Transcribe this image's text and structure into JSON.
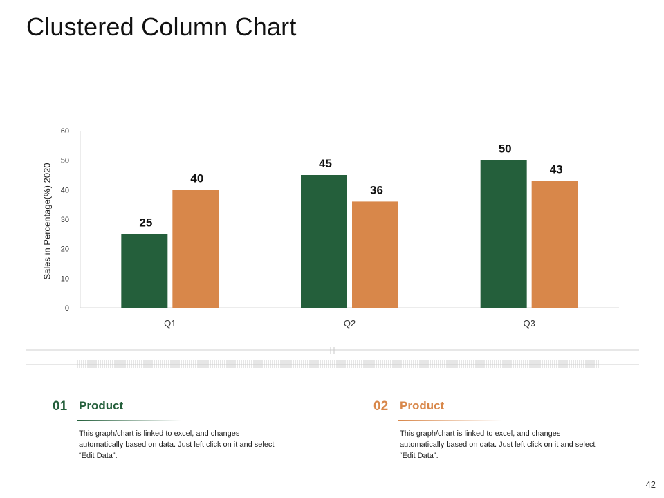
{
  "page": {
    "title": "Clustered Column Chart",
    "page_number": "42"
  },
  "chart_data": {
    "type": "bar",
    "title": "",
    "xlabel": "",
    "ylabel": "Sales in Percentage(%) 2020",
    "categories": [
      "Q1",
      "Q2",
      "Q3"
    ],
    "series": [
      {
        "name": "Product 01",
        "color": "#245F3B",
        "values": [
          25,
          45,
          50
        ]
      },
      {
        "name": "Product 02",
        "color": "#D8874A",
        "values": [
          40,
          36,
          43
        ]
      }
    ],
    "ylim": [
      0,
      60
    ],
    "yticks": [
      0,
      10,
      20,
      30,
      40,
      50,
      60
    ],
    "grid": false,
    "data_labels": true
  },
  "info": [
    {
      "number": "01",
      "title": "Product",
      "color": "#245F3B",
      "text": "This graph/chart is linked to excel, and changes automatically based on data. Just left click on it and select “Edit Data”."
    },
    {
      "number": "02",
      "title": "Product",
      "color": "#D8874A",
      "text": "This graph/chart is linked to excel, and changes automatically based on data. Just left click on it and select “Edit Data”."
    }
  ]
}
